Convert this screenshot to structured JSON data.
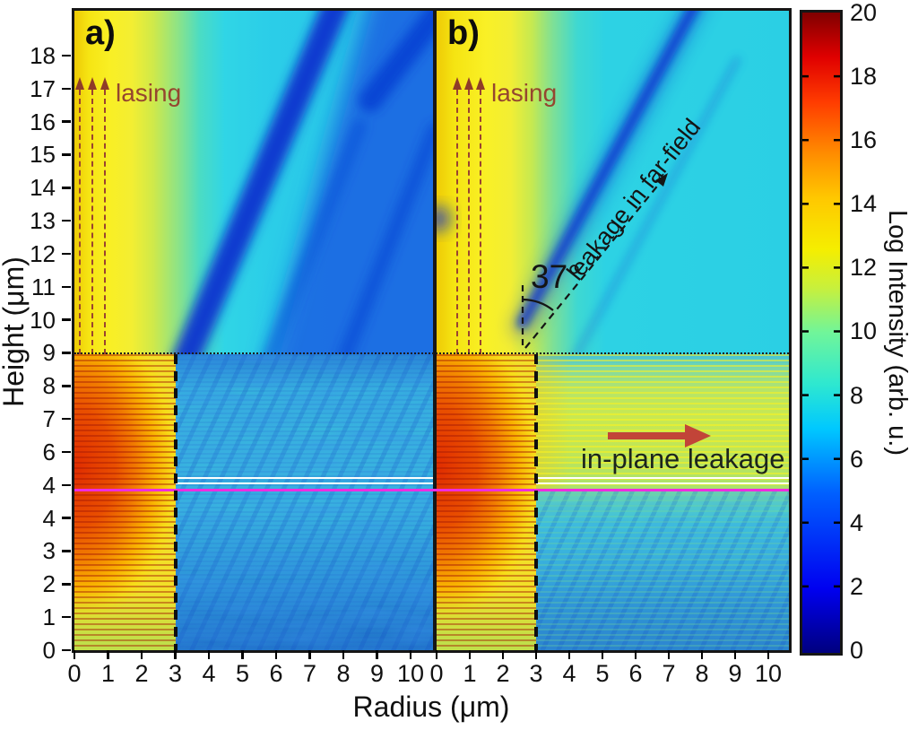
{
  "figure": {
    "panels": [
      {
        "id": "a",
        "label": "a)",
        "lasing_label": "lasing"
      },
      {
        "id": "b",
        "label": "b)",
        "lasing_label": "lasing",
        "angle_label": "37°",
        "far_field_label": "leakage in far-field",
        "in_plane_label": "in-plane leakage"
      }
    ],
    "x_axis": {
      "label": "Radius (μm)",
      "ticks": [
        "0",
        "1",
        "2",
        "3",
        "4",
        "5",
        "6",
        "7",
        "8",
        "9",
        "10"
      ]
    },
    "y_axis": {
      "label": "Height (μm)",
      "ticks_top_to_bottom": [
        "18",
        "17",
        "16",
        "15",
        "14",
        "13",
        "12",
        "11",
        "10",
        "9",
        "8",
        "7",
        "6",
        "4",
        "4",
        "3",
        "2",
        "1",
        "0"
      ]
    },
    "colorbar": {
      "label": "Log Intensity (arb. u.)",
      "ticks_top_to_bottom": [
        "20",
        "18",
        "16",
        "14",
        "12",
        "10",
        "8",
        "6",
        "4",
        "2",
        "0"
      ]
    }
  },
  "chart_data": {
    "type": "heatmap",
    "title": "",
    "xlabel": "Radius (μm)",
    "ylabel": "Height (μm)",
    "x_range": [
      0,
      10.6
    ],
    "y_range": [
      0,
      19.3
    ],
    "colorbar": {
      "label": "Log Intensity (arb. u.)",
      "range": [
        0,
        20
      ],
      "tick_step": 2,
      "colormap": "jet"
    },
    "y_tick_labels_as_printed": [
      "0",
      "1",
      "2",
      "3",
      "4",
      "4",
      "6",
      "7",
      "8",
      "9",
      "10",
      "11",
      "12",
      "13",
      "14",
      "15",
      "16",
      "17",
      "18"
    ],
    "structure": {
      "surface_interface_height_um": 9,
      "pillar_radius_um": 3,
      "cavity_marker_lines_um": {
        "white": [
          5.2,
          5.0
        ],
        "magenta": 4.8
      },
      "far_field_leakage_angle_deg": 37
    },
    "panels": [
      {
        "id": "a",
        "label": "a)",
        "regions": [
          {
            "area": "pillar interior (r<3, y<9)",
            "log_intensity": "14-18, red/orange with horizontal DBR-layer fringes, hottest near axis y≈3.5-7"
          },
          {
            "area": "outside pillar (r>3, y<9)",
            "log_intensity": "4-8, blue-cyan speckle, darker blue toward bottom with diagonal fringes"
          },
          {
            "area": "above surface on axis (r<1.5, y>9)",
            "log_intensity": "≈12, yellow vertical lasing beam"
          },
          {
            "area": "far field (large r, y>9)",
            "log_intensity": "2-7, blue with dark-blue diagonal low-intensity bands running up-right"
          }
        ],
        "annotations": [
          {
            "text": "lasing",
            "arrows": "three dashed vertical arrows near axis, r≈0.2-0.9, y≈9→17"
          }
        ]
      },
      {
        "id": "b",
        "label": "b)",
        "regions": [
          {
            "area": "pillar interior (r<3, y<9)",
            "log_intensity": "14-18, red/orange with horizontal fringes"
          },
          {
            "area": "outside pillar (r>3, 5<y<9)",
            "log_intensity": "10-12, yellow-green horizontal stripes (in-plane leakage)"
          },
          {
            "area": "outside pillar (r>3, y<4.5)",
            "log_intensity": "5-8, cyan-blue with diagonal fringes"
          },
          {
            "area": "above surface on axis (r<1.8, y>9)",
            "log_intensity": "≈12, yellow vertical lasing beam"
          },
          {
            "area": "far field (y>9)",
            "log_intensity": "7-8 cyan background with one narrow dark-blue band at 37° from vertical"
          }
        ],
        "annotations": [
          {
            "text": "lasing",
            "arrows": "three dashed vertical arrows near axis, r≈0.6-1.3, y≈9→17"
          },
          {
            "text": "37°",
            "meaning": "angle between vertical and far-field leakage direction, vertex at (r≈2.6, y≈9)"
          },
          {
            "text": "leakage in far-field",
            "arrow": "dashed arrow from (r≈2.6, y≈9) to (r≈6.8, y≈14.5)"
          },
          {
            "text": "in-plane leakage",
            "arrow": "solid dark-red horizontal arrow at y≈6.5 from r≈5.1 to r≈8"
          }
        ]
      }
    ]
  }
}
